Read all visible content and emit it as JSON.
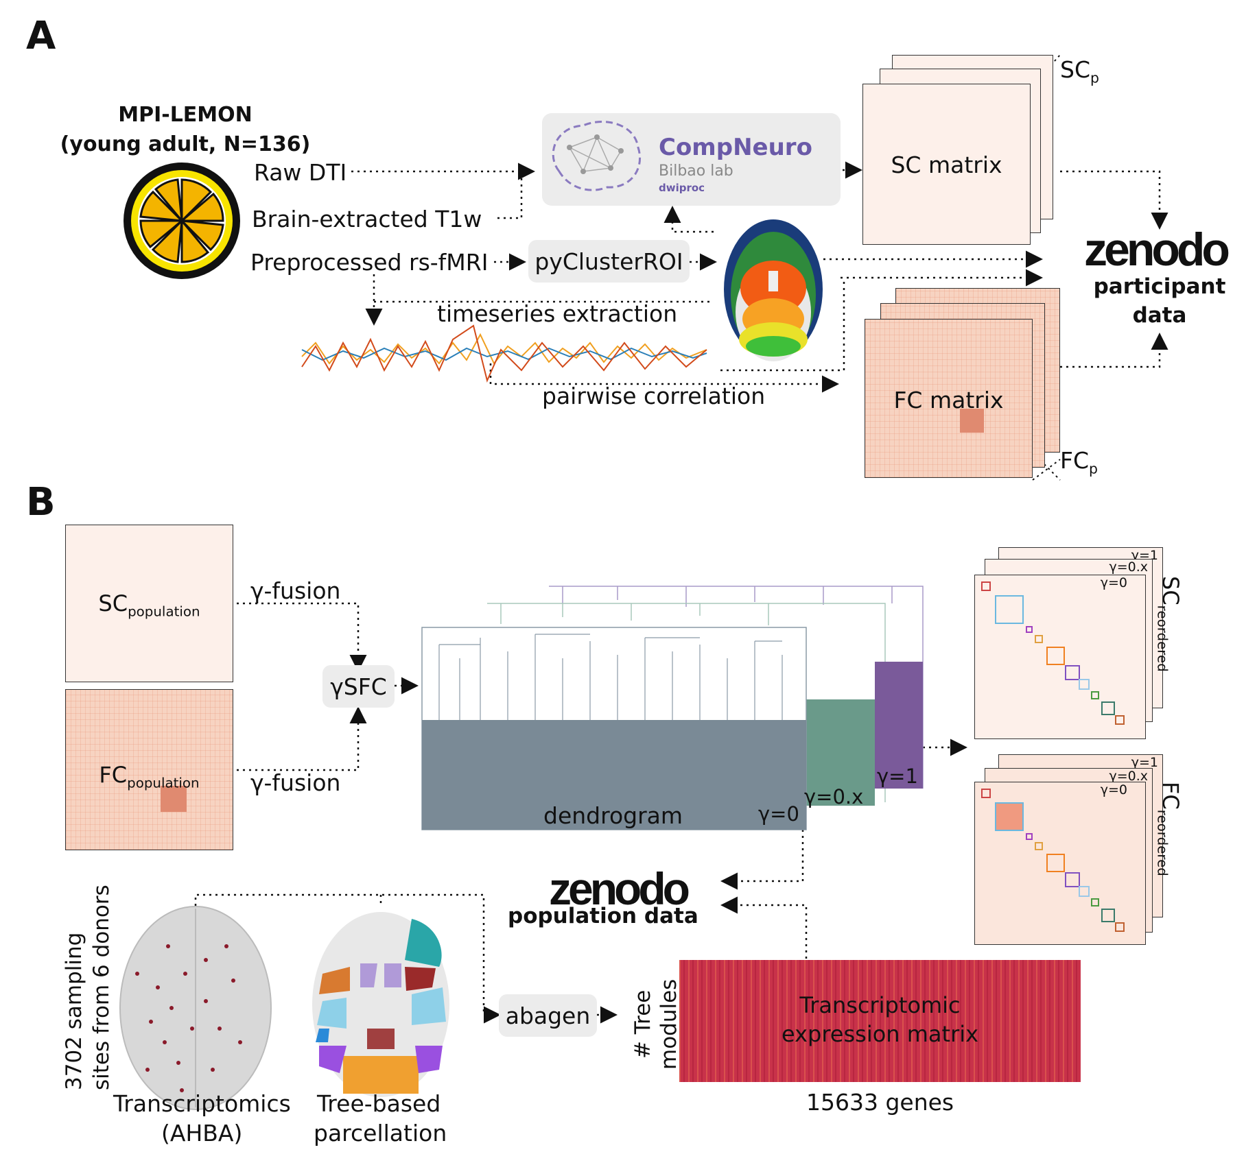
{
  "panels": {
    "a": "A",
    "b": "B"
  },
  "panelA": {
    "dataset_title": "MPI-LEMON",
    "dataset_subtitle": "(young adult, N=136)",
    "inputs": [
      "Raw DTI",
      "Brain-extracted T1w",
      "Preprocessed rs-fMRI"
    ],
    "tool_box": "pyClusterROI",
    "compneuro": {
      "name": "CompNeuro",
      "lab": "Bilbao lab",
      "tool": "dwiproc"
    },
    "timeseries_label": "timeseries extraction",
    "pairwise_label": "pairwise correlation",
    "sc_matrix": "SC matrix",
    "fc_matrix": "FC matrix",
    "sc_p": {
      "base": "SC",
      "sub": "p"
    },
    "fc_p": {
      "base": "FC",
      "sub": "p"
    },
    "zenodo": "zenodo",
    "zenodo_caption": [
      "participant",
      "data"
    ]
  },
  "panelB": {
    "sc_pop": {
      "base": "SC",
      "sub": "population"
    },
    "fc_pop": {
      "base": "FC",
      "sub": "population"
    },
    "fusion_top": "γ-fusion",
    "fusion_bottom": "γ-fusion",
    "ysfc": "γSFC",
    "dendrogram": "dendrogram",
    "gamma_labels": {
      "g0": "γ=0",
      "gx": "γ=0.x",
      "g1": "γ=1"
    },
    "stack_gammas": [
      "γ=1",
      "γ=0.x",
      "γ=0"
    ],
    "sc_reordered": {
      "base": "SC",
      "sub": "reordered"
    },
    "fc_reordered": {
      "base": "FC",
      "sub": "reordered"
    },
    "zenodo": "zenodo",
    "zenodo_caption": "population data",
    "sampling": [
      "3702 sampling",
      "sites from 6 donors"
    ],
    "transcriptomics": [
      "Transcriptomics",
      "(AHBA)"
    ],
    "tree_parc": [
      "Tree-based",
      "parcellation"
    ],
    "abagen": "abagen",
    "modules_axis": [
      "# Tree",
      "modules"
    ],
    "expr_matrix": [
      "Transcriptomic",
      "expression matrix"
    ],
    "genes_axis": "15633 genes"
  },
  "colors": {
    "zenodo": "#111111",
    "compneuro": "#6a5aa8",
    "dendro_gray": "#7a8a96",
    "dendro_green": "#6a9a8a",
    "dendro_purple": "#7a5a9a",
    "expr": "#c8324a"
  }
}
